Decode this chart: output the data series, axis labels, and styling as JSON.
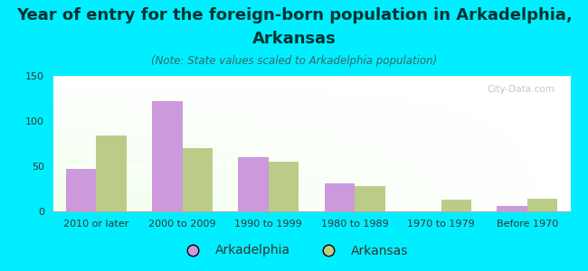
{
  "title_line1": "Year of entry for the foreign-born population in Arkadelphia,",
  "title_line2": "Arkansas",
  "subtitle": "(Note: State values scaled to Arkadelphia population)",
  "categories": [
    "2010 or later",
    "2000 to 2009",
    "1990 to 1999",
    "1980 to 1989",
    "1970 to 1979",
    "Before 1970"
  ],
  "arkadelphia_values": [
    47,
    122,
    60,
    31,
    0,
    6
  ],
  "arkansas_values": [
    84,
    70,
    55,
    28,
    13,
    14
  ],
  "arkadelphia_color": "#cc99dd",
  "arkansas_color": "#bbcc88",
  "background_color": "#00eeff",
  "ylim": [
    0,
    150
  ],
  "yticks": [
    0,
    50,
    100,
    150
  ],
  "bar_width": 0.35,
  "title_fontsize": 13,
  "subtitle_fontsize": 8.5,
  "tick_fontsize": 8,
  "legend_fontsize": 10,
  "watermark": "City-Data.com"
}
